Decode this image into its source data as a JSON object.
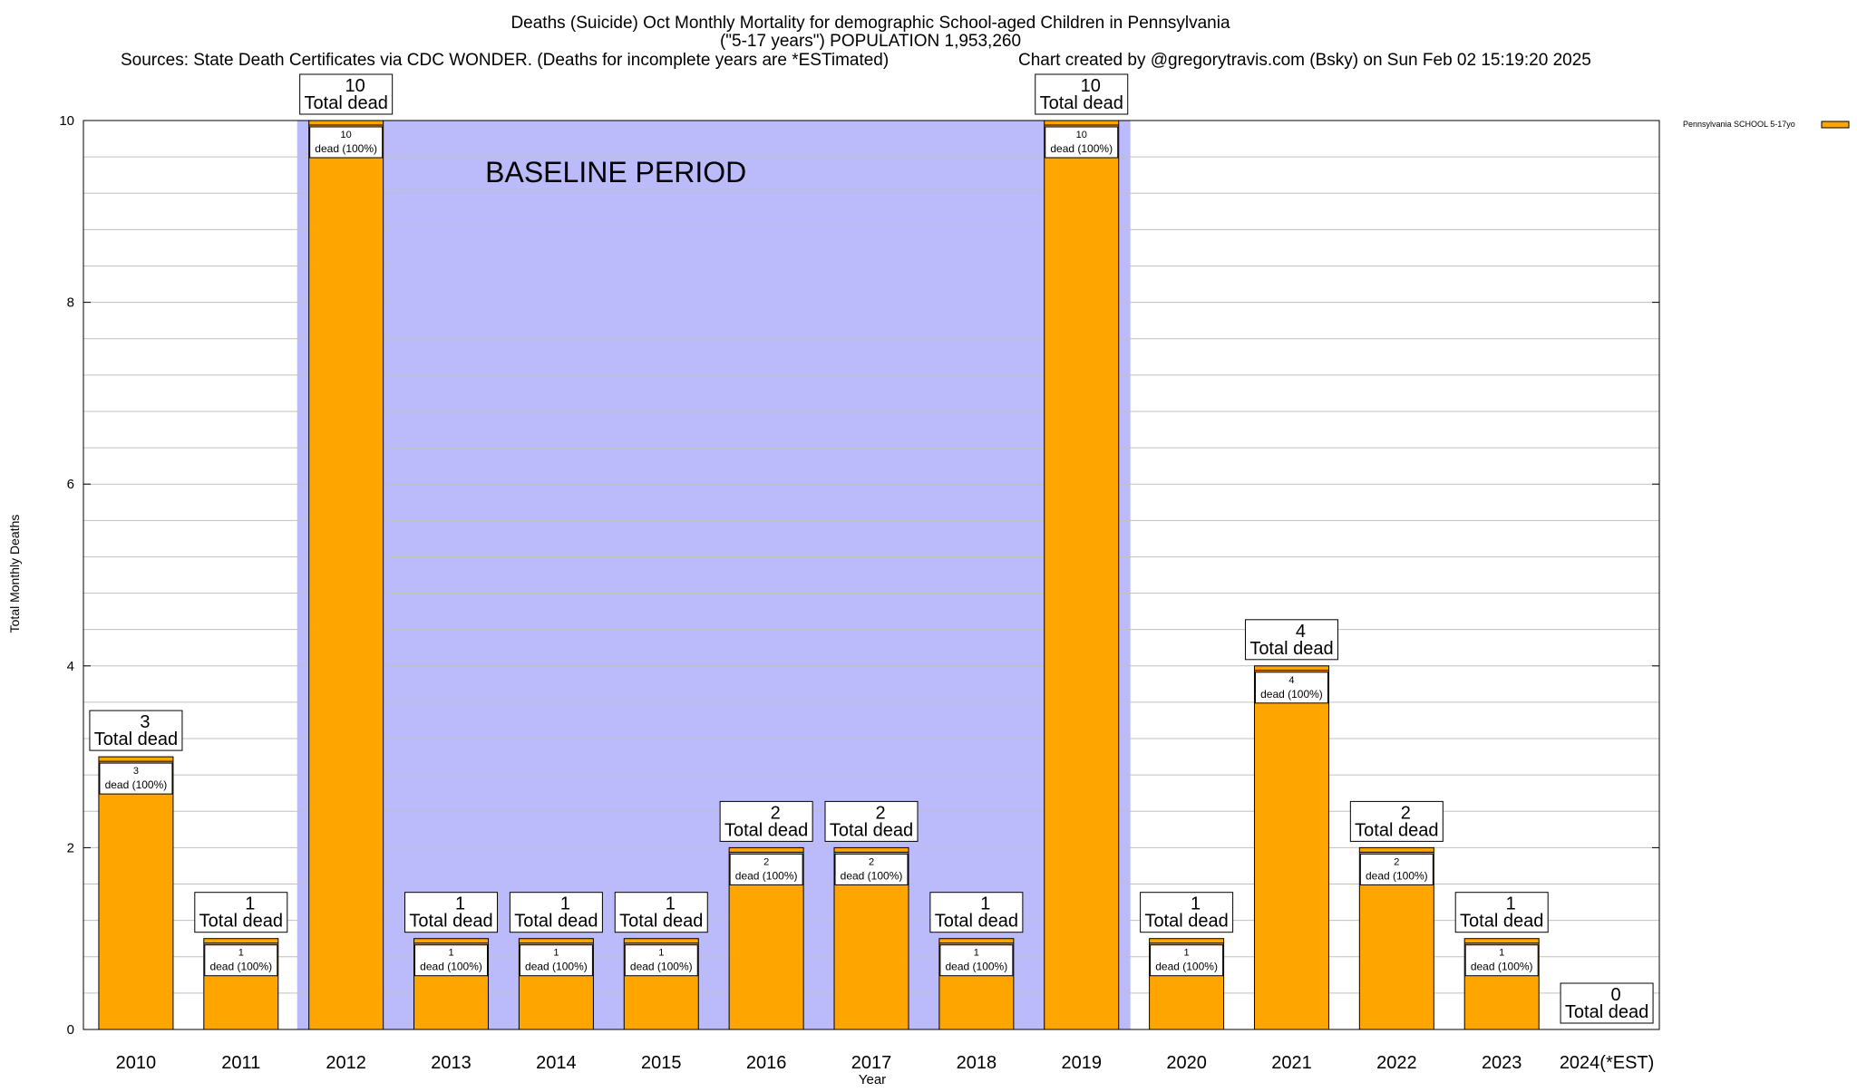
{
  "header": {
    "title_line1": "Deaths (Suicide) Oct Monthly Mortality for demographic School-aged Children in Pennsylvania",
    "title_line2": "(\"5-17 years\") POPULATION 1,953,260",
    "sources": "Sources: State Death Certificates via CDC WONDER. (Deaths for incomplete years are *ESTimated)",
    "credit": "Chart created by @gregorytravis.com (Bsky) on Sun Feb 02 15:19:20 2025"
  },
  "colors": {
    "bar": "#ffa500",
    "baseline_band": "#bbbbfb",
    "grid": "#c0c0c0"
  },
  "chart_data": {
    "type": "bar",
    "categories": [
      "2010",
      "2011",
      "2012",
      "2013",
      "2014",
      "2015",
      "2016",
      "2017",
      "2018",
      "2019",
      "2020",
      "2021",
      "2022",
      "2023",
      "2024(*EST)"
    ],
    "series": [
      {
        "name": "Pennsylvania SCHOOL 5-17yo",
        "values": [
          3,
          1,
          10,
          1,
          1,
          1,
          2,
          2,
          1,
          10,
          1,
          4,
          2,
          1,
          0
        ]
      }
    ],
    "total_labels": [
      {
        "value": "3",
        "text": "Total dead"
      },
      {
        "value": "1",
        "text": "Total dead"
      },
      {
        "value": "10",
        "text": "Total dead"
      },
      {
        "value": "1",
        "text": "Total dead"
      },
      {
        "value": "1",
        "text": "Total dead"
      },
      {
        "value": "1",
        "text": "Total dead"
      },
      {
        "value": "2",
        "text": "Total dead"
      },
      {
        "value": "2",
        "text": "Total dead"
      },
      {
        "value": "1",
        "text": "Total dead"
      },
      {
        "value": "10",
        "text": "Total dead"
      },
      {
        "value": "1",
        "text": "Total dead"
      },
      {
        "value": "4",
        "text": "Total dead"
      },
      {
        "value": "2",
        "text": "Total dead"
      },
      {
        "value": "1",
        "text": "Total dead"
      },
      {
        "value": "0",
        "text": "Total dead"
      }
    ],
    "segment_labels": [
      {
        "value": "3",
        "text": "dead (100%)"
      },
      {
        "value": "1",
        "text": "dead (100%)"
      },
      {
        "value": "10",
        "text": "dead (100%)"
      },
      {
        "value": "1",
        "text": "dead (100%)"
      },
      {
        "value": "1",
        "text": "dead (100%)"
      },
      {
        "value": "1",
        "text": "dead (100%)"
      },
      {
        "value": "2",
        "text": "dead (100%)"
      },
      {
        "value": "2",
        "text": "dead (100%)"
      },
      {
        "value": "1",
        "text": "dead (100%)"
      },
      {
        "value": "10",
        "text": "dead (100%)"
      },
      {
        "value": "1",
        "text": "dead (100%)"
      },
      {
        "value": "4",
        "text": "dead (100%)"
      },
      {
        "value": "2",
        "text": "dead (100%)"
      },
      {
        "value": "1",
        "text": "dead (100%)"
      },
      null
    ],
    "baseline_period": {
      "label": "BASELINE PERIOD",
      "start": "2012",
      "end": "2019"
    },
    "xlabel": "Year",
    "ylabel": "Total Monthly Deaths",
    "ylim": [
      0,
      10
    ],
    "yticks": [
      0,
      2,
      4,
      6,
      8,
      10
    ],
    "grid": true,
    "legend": {
      "placement": "top-right, outside plot",
      "entry": "Pennsylvania SCHOOL 5-17yo"
    }
  }
}
